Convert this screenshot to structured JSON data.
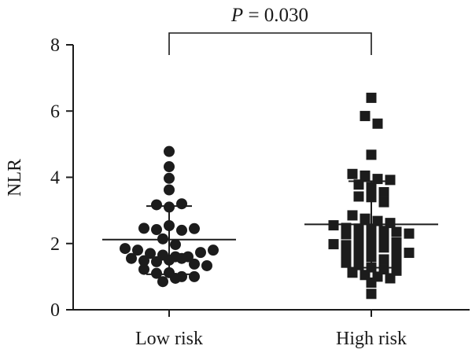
{
  "chart_data": {
    "type": "scatter",
    "subtype": "dot-plot",
    "ylabel": "NLR",
    "xlabel": "",
    "ylim": [
      0,
      8
    ],
    "yticks": [
      0,
      2,
      4,
      6,
      8
    ],
    "categories": [
      "Low risk",
      "High risk"
    ],
    "annotation": {
      "text_italic": "P",
      "text_rest": " = 0.030"
    },
    "series": [
      {
        "category": "Low risk",
        "marker": "circle",
        "mean": 2.12,
        "sd_upper": 3.13,
        "sd_lower": 1.07,
        "values": [
          4.78,
          4.32,
          3.97,
          3.62,
          3.17,
          3.1,
          3.2,
          2.46,
          2.42,
          2.54,
          2.4,
          2.45,
          2.14,
          1.97,
          1.85,
          1.8,
          1.7,
          1.65,
          1.6,
          1.55,
          1.48,
          1.45,
          1.5,
          1.55,
          1.6,
          1.73,
          1.8,
          1.38,
          1.33,
          1.22,
          1.1,
          1.12,
          1.0,
          0.85,
          0.95,
          1.0
        ]
      },
      {
        "category": "High risk",
        "marker": "square",
        "mean": 2.58,
        "sd_upper": 3.88,
        "sd_lower": 1.27,
        "values": [
          6.4,
          5.85,
          5.62,
          4.68,
          4.1,
          4.05,
          3.95,
          3.92,
          3.78,
          3.7,
          3.55,
          3.42,
          3.4,
          3.25,
          2.85,
          2.75,
          2.68,
          2.62,
          2.55,
          2.47,
          2.45,
          2.42,
          2.38,
          2.35,
          2.3,
          2.28,
          2.22,
          2.12,
          2.08,
          2.03,
          1.98,
          1.95,
          1.92,
          1.9,
          1.88,
          1.75,
          1.72,
          1.7,
          1.65,
          1.6,
          1.52,
          1.45,
          1.42,
          1.35,
          1.28,
          1.22,
          1.18,
          1.12,
          1.05,
          1.0,
          0.95,
          0.82,
          0.48
        ]
      }
    ]
  }
}
